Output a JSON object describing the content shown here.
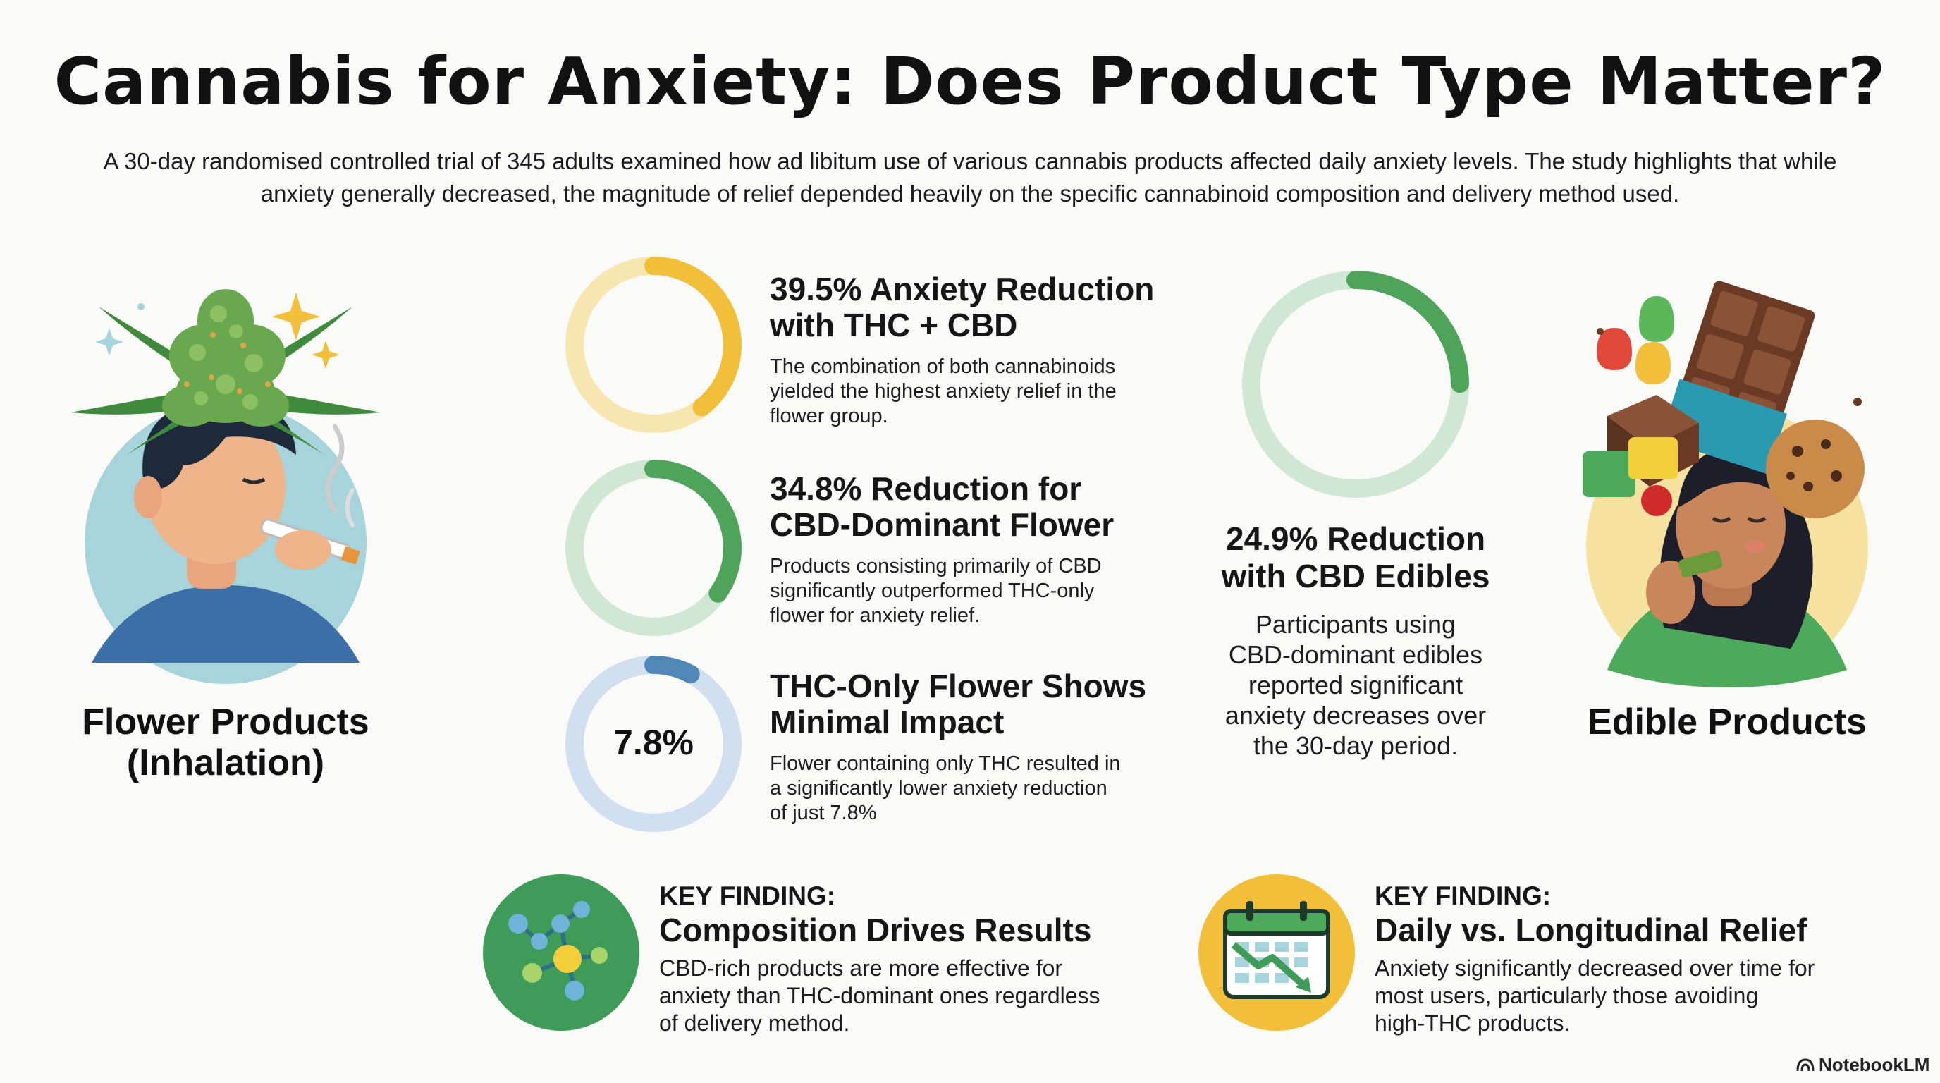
{
  "title": "Cannabis for Anxiety: Does Product Type Matter?",
  "intro": "A 30-day randomised controlled trial of 345 adults examined how ad libitum use of various cannabis products affected daily anxiety levels. The study highlights that while anxiety generally decreased, the magnitude of relief depended heavily on the specific cannabinoid composition and delivery method used.",
  "flower": {
    "label_line1": "Flower Products",
    "label_line2": "(Inhalation)"
  },
  "edible": {
    "label": "Edible Products"
  },
  "stats": [
    {
      "title_line1": "39.5% Anxiety Reduction",
      "title_line2": "with THC + CBD",
      "body_lines": [
        "The combination of both cannabinoids",
        "yielded the highest anxiety relief in the",
        "flower group."
      ],
      "percent": 39.5,
      "color": "#f2bf3a",
      "track": "#f8e6b0"
    },
    {
      "title_line1": "34.8% Reduction for",
      "title_line2": "CBD-Dominant Flower",
      "body_lines": [
        "Products consisting primarily of CBD",
        "significantly outperformed THC-only",
        "flower for anxiety relief."
      ],
      "percent": 34.8,
      "color": "#4fa35b",
      "track": "#cfe7d3"
    },
    {
      "title_line1": "THC-Only Flower Shows",
      "title_line2": "Minimal Impact",
      "body_lines": [
        "Flower containing only THC resulted in",
        "a significantly lower anxiety reduction",
        "of just 7.8%"
      ],
      "percent": 7.8,
      "ring_label": "7.8%",
      "color": "#4f87b8",
      "track": "#d2dfee"
    }
  ],
  "edible_stat": {
    "title_line1": "24.9% Reduction",
    "title_line2": "with CBD Edibles",
    "body_lines": [
      "Participants using",
      "CBD-dominant edibles",
      "reported significant",
      "anxiety decreases over",
      "the 30-day period."
    ],
    "percent": 24.9,
    "color": "#4fa35b",
    "track": "#cfe7d3"
  },
  "key_findings": [
    {
      "eyebrow": "KEY FINDING:",
      "title": "Composition Drives Results",
      "body_lines": [
        "CBD-rich products are more effective for",
        "anxiety than THC-dominant ones regardless",
        "of delivery method."
      ],
      "icon": "molecule-icon",
      "icon_bg": "#3e9b58"
    },
    {
      "eyebrow": "KEY FINDING:",
      "title": "Daily vs. Longitudinal Relief",
      "body_lines": [
        "Anxiety significantly decreased over time for",
        "most users, particularly those avoiding",
        "high-THC products."
      ],
      "icon": "calendar-trend-icon",
      "icon_bg": "#f2bf3a"
    }
  ],
  "brand": "NotebookLM"
}
